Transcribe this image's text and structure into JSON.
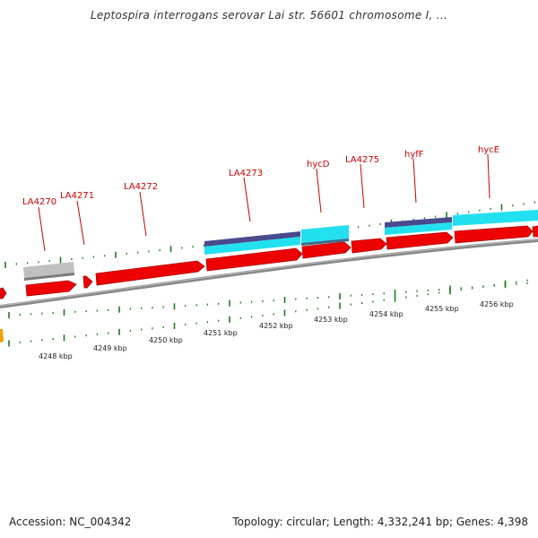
{
  "title": "Leptospira interrogans serovar Lai str. 56601 chromosome I, ...",
  "footer": {
    "accession_label": "Accession: NC_004342",
    "topology_label": "Topology: circular; Length: 4,332,241 bp; Genes: 4,398"
  },
  "map": {
    "colors": {
      "cds": "#ee0000",
      "cds_edge": "#aa0000",
      "gene_label": "#cc0000",
      "backbone": "#888888",
      "pseudo": "#c0c0c0",
      "feature_cyan": "#22e0f0",
      "feature_navy": "#4a4a8e",
      "ruler_tick": "#1f7a1f",
      "offscreen_feature": "#f0a000"
    },
    "genes": [
      {
        "label": "LA4270"
      },
      {
        "label": "LA4271"
      },
      {
        "label": "LA4272"
      },
      {
        "label": "LA4273"
      },
      {
        "label": "hycD"
      },
      {
        "label": "LA4275"
      },
      {
        "label": "hyfF"
      },
      {
        "label": "hycE"
      }
    ],
    "kbp_labels": [
      "4248 kbp",
      "4249 kbp",
      "4250 kbp",
      "4251 kbp",
      "4252 kbp",
      "4253 kbp",
      "4254 kbp",
      "4255 kbp",
      "4256 kbp"
    ]
  }
}
